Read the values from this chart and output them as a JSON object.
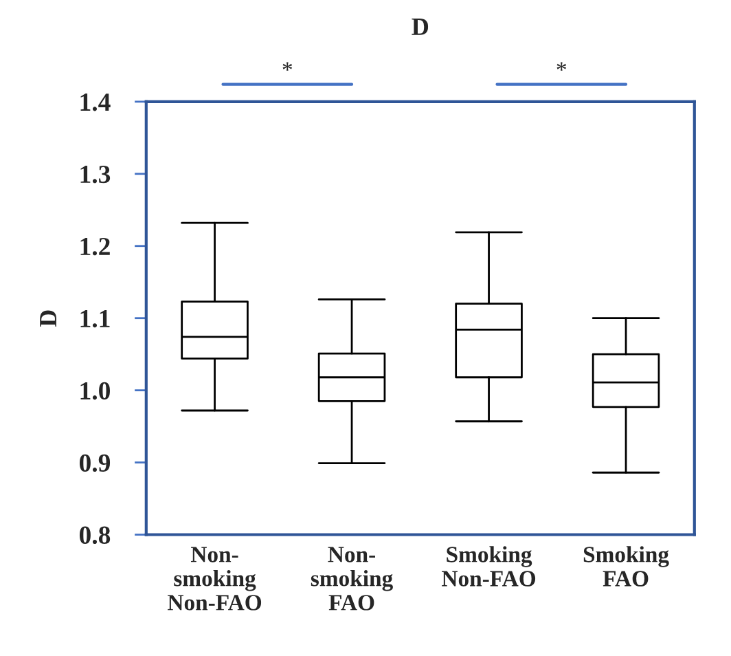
{
  "chart_data": {
    "type": "box",
    "title": "D",
    "ylabel": "D",
    "categories": [
      "Non-\nsmoking\nNon-FAO",
      "Non-\nsmoking\nFAO",
      "Smoking\nNon-FAO",
      "Smoking\nFAO"
    ],
    "boxes": [
      {
        "low": 0.972,
        "q1": 1.044,
        "median": 1.074,
        "q3": 1.123,
        "high": 1.232
      },
      {
        "low": 0.899,
        "q1": 0.985,
        "median": 1.018,
        "q3": 1.051,
        "high": 1.126
      },
      {
        "low": 0.957,
        "q1": 1.018,
        "median": 1.084,
        "q3": 1.12,
        "high": 1.219
      },
      {
        "low": 0.886,
        "q1": 0.977,
        "median": 1.011,
        "q3": 1.05,
        "high": 1.1
      }
    ],
    "ylim": [
      0.8,
      1.4
    ],
    "yticks": [
      0.8,
      0.9,
      {
        "value": 1.0,
        "label": "1.0"
      },
      1.1,
      1.2,
      1.3,
      1.4
    ],
    "grid": false,
    "annotations": [
      "*",
      "*"
    ]
  }
}
